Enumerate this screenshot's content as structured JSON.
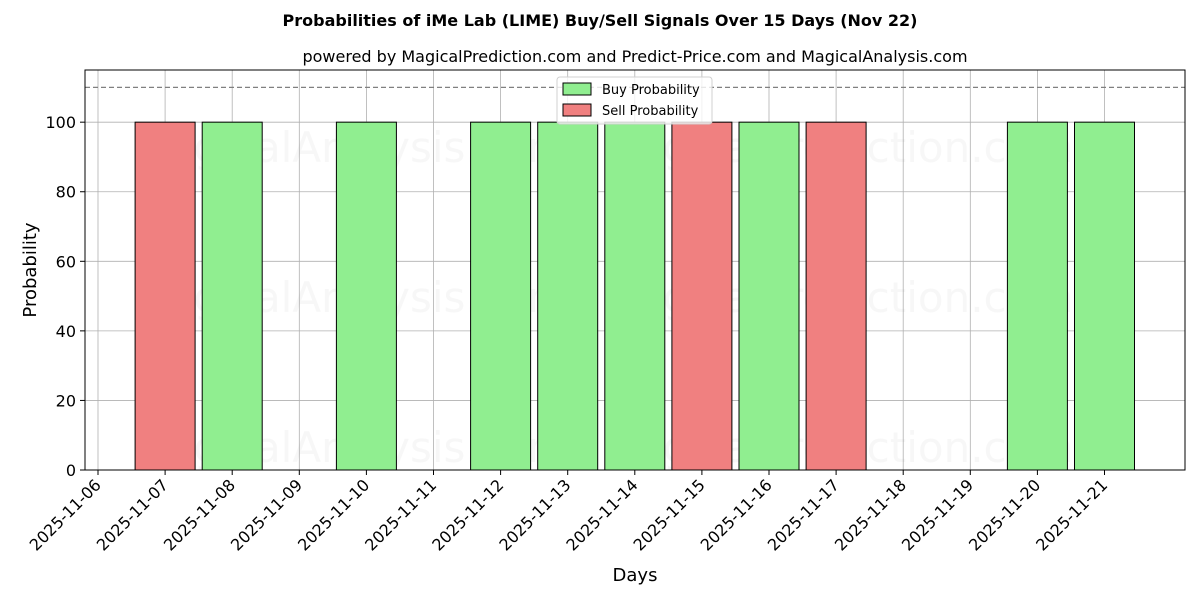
{
  "chart_data": {
    "type": "bar",
    "title": "Probabilities of iMe Lab (LIME) Buy/Sell Signals Over 15 Days (Nov 22)",
    "subtitle": "powered by MagicalPrediction.com and Predict-Price.com and MagicalAnalysis.com",
    "xlabel": "Days",
    "ylabel": "Probability",
    "ylim": [
      0,
      115
    ],
    "yticks": [
      0,
      20,
      40,
      60,
      80,
      100
    ],
    "reference_line": 110,
    "grid": true,
    "legend_position": "top-center",
    "x_tick_labels": [
      "2025-11-06",
      "2025-11-07",
      "2025-11-08",
      "2025-11-09",
      "2025-11-10",
      "2025-11-11",
      "2025-11-12",
      "2025-11-13",
      "2025-11-14",
      "2025-11-15",
      "2025-11-16",
      "2025-11-17",
      "2025-11-18",
      "2025-11-19",
      "2025-11-20",
      "2025-11-21"
    ],
    "series": [
      {
        "name": "Buy Probability",
        "color": "#90ee90",
        "points": [
          {
            "date": "2025-11-08",
            "value": 100
          },
          {
            "date": "2025-11-10",
            "value": 100
          },
          {
            "date": "2025-11-12",
            "value": 100
          },
          {
            "date": "2025-11-13",
            "value": 100
          },
          {
            "date": "2025-11-14",
            "value": 100
          },
          {
            "date": "2025-11-16",
            "value": 100
          },
          {
            "date": "2025-11-20",
            "value": 100
          },
          {
            "date": "2025-11-21",
            "value": 100
          }
        ]
      },
      {
        "name": "Sell Probability",
        "color": "#f08080",
        "points": [
          {
            "date": "2025-11-07",
            "value": 100
          },
          {
            "date": "2025-11-15",
            "value": 100
          },
          {
            "date": "2025-11-17",
            "value": 100
          }
        ]
      }
    ],
    "watermarks": [
      "MagicalAnalysis.com",
      "MagicalPrediction.com"
    ]
  }
}
